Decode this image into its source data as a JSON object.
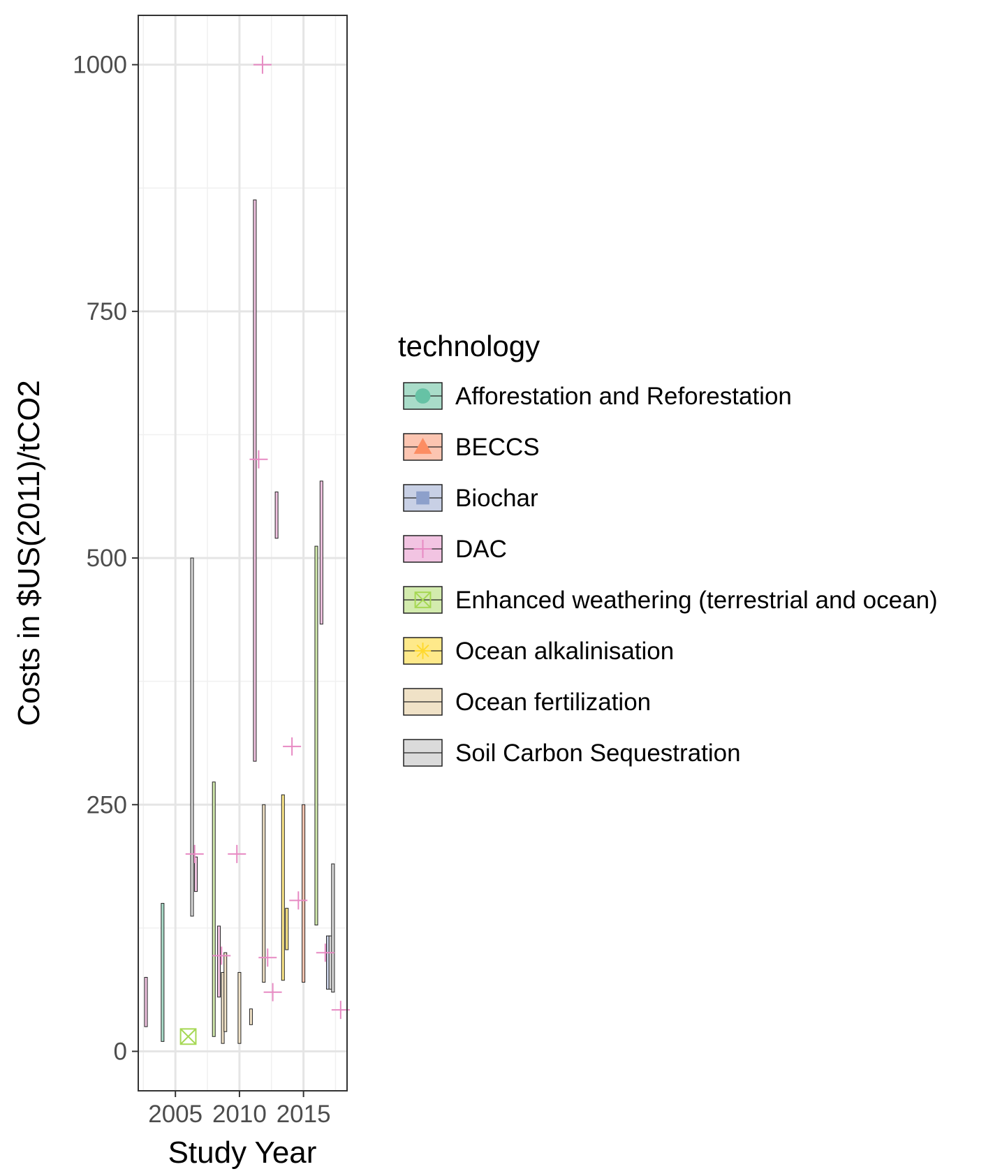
{
  "chart_data": {
    "type": "scatter",
    "xlabel": "Study Year",
    "ylabel": "Costs in $US(2011)/tCO2",
    "xlim": [
      2002.1,
      2018.4
    ],
    "ylim": [
      -40,
      1050
    ],
    "x_ticks": [
      2005,
      2010,
      2015
    ],
    "y_ticks": [
      0,
      250,
      500,
      750,
      1000
    ],
    "grid": true,
    "legend": {
      "title": "technology",
      "position": "right",
      "entries": [
        {
          "name": "Afforestation and Reforestation",
          "fill": "#a9dcc9",
          "color": "#66c2a5",
          "shape": "circle"
        },
        {
          "name": "BECCS",
          "fill": "#fcc5b1",
          "color": "#fc8d62",
          "shape": "triangle"
        },
        {
          "name": "Biochar",
          "fill": "#c8d0e5",
          "color": "#8da0cb",
          "shape": "square"
        },
        {
          "name": "DAC",
          "fill": "#f2c4e2",
          "color": "#e78ac3",
          "shape": "plus"
        },
        {
          "name": "Enhanced weathering (terrestrial and ocean)",
          "fill": "#d3ebae",
          "color": "#a6d854",
          "shape": "boxcross"
        },
        {
          "name": "Ocean alkalinisation",
          "fill": "#fee98a",
          "color": "#ffd92f",
          "shape": "asterisk"
        },
        {
          "name": "Ocean fertilization",
          "fill": "#f0e2c7",
          "color": "#e5c494",
          "shape": "none"
        },
        {
          "name": "Soil Carbon Sequestration",
          "fill": "#dbdbdb",
          "color": "#b3b3b3",
          "shape": "none"
        }
      ]
    },
    "ranges": [
      {
        "technology": "DAC",
        "x": 2002.7,
        "ymin": 25,
        "ymax": 75
      },
      {
        "technology": "Afforestation and Reforestation",
        "x": 2004.0,
        "ymin": 10,
        "ymax": 150
      },
      {
        "technology": "Soil Carbon Sequestration",
        "x": 2006.3,
        "ymin": 137,
        "ymax": 500
      },
      {
        "technology": "DAC",
        "x": 2006.6,
        "ymin": 162,
        "ymax": 197
      },
      {
        "technology": "Enhanced weathering (terrestrial and ocean)",
        "x": 2008.0,
        "ymin": 15,
        "ymax": 273
      },
      {
        "technology": "DAC",
        "x": 2008.4,
        "ymin": 55,
        "ymax": 127
      },
      {
        "technology": "Ocean fertilization",
        "x": 2008.7,
        "ymin": 8,
        "ymax": 80
      },
      {
        "technology": "Ocean fertilization",
        "x": 2008.9,
        "ymin": 20,
        "ymax": 100
      },
      {
        "technology": "Ocean fertilization",
        "x": 2010.0,
        "ymin": 8,
        "ymax": 80
      },
      {
        "technology": "Ocean fertilization",
        "x": 2010.9,
        "ymin": 27,
        "ymax": 43
      },
      {
        "technology": "DAC",
        "x": 2011.2,
        "ymin": 294,
        "ymax": 863
      },
      {
        "technology": "Ocean fertilization",
        "x": 2011.9,
        "ymin": 70,
        "ymax": 250
      },
      {
        "technology": "DAC",
        "x": 2012.9,
        "ymin": 520,
        "ymax": 567
      },
      {
        "technology": "Ocean alkalinisation",
        "x": 2013.4,
        "ymin": 72,
        "ymax": 260
      },
      {
        "technology": "Ocean alkalinisation",
        "x": 2013.7,
        "ymin": 103,
        "ymax": 145
      },
      {
        "technology": "BECCS",
        "x": 2015.0,
        "ymin": 70,
        "ymax": 250
      },
      {
        "technology": "Enhanced weathering (terrestrial and ocean)",
        "x": 2016.0,
        "ymin": 128,
        "ymax": 512
      },
      {
        "technology": "DAC",
        "x": 2016.4,
        "ymin": 433,
        "ymax": 578
      },
      {
        "technology": "Biochar",
        "x": 2016.9,
        "ymin": 63,
        "ymax": 117
      },
      {
        "technology": "Soil Carbon Sequestration",
        "x": 2017.1,
        "ymin": 63,
        "ymax": 117
      },
      {
        "technology": "Soil Carbon Sequestration",
        "x": 2017.3,
        "ymin": 60,
        "ymax": 190
      }
    ],
    "points": [
      {
        "technology": "DAC",
        "x": 2011.8,
        "y": 1000
      },
      {
        "technology": "DAC",
        "x": 2011.5,
        "y": 600
      },
      {
        "technology": "DAC",
        "x": 2014.1,
        "y": 309
      },
      {
        "technology": "DAC",
        "x": 2006.5,
        "y": 200
      },
      {
        "technology": "DAC",
        "x": 2009.8,
        "y": 200
      },
      {
        "technology": "DAC",
        "x": 2014.6,
        "y": 153
      },
      {
        "technology": "DAC",
        "x": 2008.6,
        "y": 97
      },
      {
        "technology": "DAC",
        "x": 2012.2,
        "y": 95
      },
      {
        "technology": "DAC",
        "x": 2016.7,
        "y": 100
      },
      {
        "technology": "DAC",
        "x": 2012.6,
        "y": 60
      },
      {
        "technology": "DAC",
        "x": 2017.9,
        "y": 42
      },
      {
        "technology": "Enhanced weathering (terrestrial and ocean)",
        "x": 2006.0,
        "y": 15
      }
    ]
  }
}
